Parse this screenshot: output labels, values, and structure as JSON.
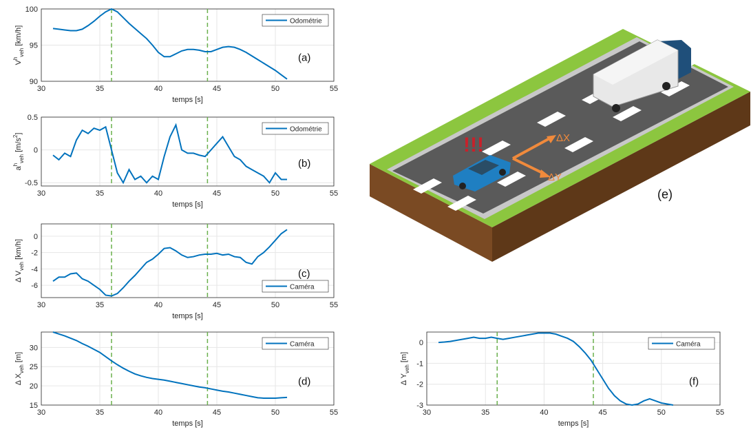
{
  "chart_data": [
    {
      "type": "line",
      "panel_label": "(a)",
      "xlabel": "temps [s]",
      "ylabel": [
        {
          "text": "V"
        },
        {
          "text": "h",
          "pos": "sup"
        },
        {
          "text": "veh",
          "pos": "sub"
        },
        {
          "text": " [km/h]"
        }
      ],
      "xlim": [
        30,
        55
      ],
      "xticks": [
        30,
        35,
        40,
        45,
        50,
        55
      ],
      "ylim": [
        90,
        100
      ],
      "yticks": [
        90,
        95,
        100
      ],
      "grid": true,
      "legend": "upper right",
      "vlines": [
        36,
        44.2
      ],
      "vline_color": "#6ab04c",
      "x": [
        31,
        31.5,
        32,
        32.5,
        33,
        33.5,
        34,
        34.5,
        35,
        35.5,
        36,
        36.5,
        37,
        37.5,
        38,
        38.5,
        39,
        39.5,
        40,
        40.5,
        41,
        41.5,
        42,
        42.5,
        43,
        43.5,
        44,
        44.5,
        45,
        45.5,
        46,
        46.5,
        47,
        47.5,
        48,
        48.5,
        49,
        49.5,
        50,
        50.5,
        51
      ],
      "series": [
        {
          "name": "Odométrie",
          "color": "#0072bd",
          "values": [
            97.3,
            97.2,
            97.1,
            97.0,
            97.0,
            97.2,
            97.7,
            98.3,
            99,
            99.6,
            100,
            99.6,
            98.8,
            98.0,
            97.3,
            96.6,
            95.9,
            95.0,
            94.0,
            93.4,
            93.4,
            93.8,
            94.2,
            94.4,
            94.4,
            94.3,
            94.1,
            94.1,
            94.4,
            94.7,
            94.8,
            94.7,
            94.4,
            94.0,
            93.5,
            93.0,
            92.5,
            92.0,
            91.5,
            90.9,
            90.3
          ]
        }
      ]
    },
    {
      "type": "line",
      "panel_label": "(b)",
      "xlabel": "temps [s]",
      "ylabel": [
        {
          "text": "a"
        },
        {
          "text": "h",
          "pos": "sup"
        },
        {
          "text": "veh",
          "pos": "sub"
        },
        {
          "text": " [m/s"
        },
        {
          "text": "2",
          "pos": "sup"
        },
        {
          "text": "]"
        }
      ],
      "xlim": [
        30,
        55
      ],
      "xticks": [
        30,
        35,
        40,
        45,
        50,
        55
      ],
      "ylim": [
        -0.55,
        0.5
      ],
      "yticks": [
        -0.5,
        0,
        0.5
      ],
      "grid": true,
      "legend": "upper right",
      "vlines": [
        36,
        44.2
      ],
      "vline_color": "#6ab04c",
      "x": [
        31,
        31.5,
        32,
        32.5,
        33,
        33.5,
        34,
        34.5,
        35,
        35.5,
        36,
        36.5,
        37,
        37.5,
        38,
        38.5,
        39,
        39.5,
        40,
        40.5,
        41,
        41.5,
        42,
        42.5,
        43,
        43.5,
        44,
        44.5,
        45,
        45.5,
        46,
        46.5,
        47,
        47.5,
        48,
        48.5,
        49,
        49.5,
        50,
        50.5,
        51
      ],
      "series": [
        {
          "name": "Odométrie",
          "color": "#0072bd",
          "values": [
            -0.08,
            -0.15,
            -0.05,
            -0.1,
            0.15,
            0.3,
            0.25,
            0.33,
            0.3,
            0.35,
            0.0,
            -0.35,
            -0.5,
            -0.3,
            -0.45,
            -0.4,
            -0.5,
            -0.4,
            -0.45,
            -0.1,
            0.2,
            0.38,
            0.0,
            -0.05,
            -0.05,
            -0.08,
            -0.1,
            0.0,
            0.1,
            0.2,
            0.05,
            -0.1,
            -0.15,
            -0.25,
            -0.3,
            -0.35,
            -0.4,
            -0.5,
            -0.35,
            -0.45,
            -0.45
          ]
        }
      ]
    },
    {
      "type": "line",
      "panel_label": "(c)",
      "xlabel": "temps [s]",
      "ylabel": [
        {
          "text": "Δ V"
        },
        {
          "text": "veh",
          "pos": "sub"
        },
        {
          "text": " [km/h]"
        }
      ],
      "xlim": [
        30,
        55
      ],
      "xticks": [
        30,
        35,
        40,
        45,
        50,
        55
      ],
      "ylim": [
        -7.5,
        1.5
      ],
      "yticks": [
        -6,
        -4,
        -2,
        0
      ],
      "grid": true,
      "legend": "lower right",
      "vlines": [
        36,
        44.2
      ],
      "vline_color": "#6ab04c",
      "x": [
        31,
        31.5,
        32,
        32.5,
        33,
        33.5,
        34,
        34.5,
        35,
        35.5,
        36,
        36.5,
        37,
        37.5,
        38,
        38.5,
        39,
        39.5,
        40,
        40.5,
        41,
        41.5,
        42,
        42.5,
        43,
        43.5,
        44,
        44.5,
        45,
        45.5,
        46,
        46.5,
        47,
        47.5,
        48,
        48.5,
        49,
        49.5,
        50,
        50.5,
        51
      ],
      "series": [
        {
          "name": "Caméra",
          "color": "#0072bd",
          "values": [
            -5.5,
            -5,
            -5,
            -4.6,
            -4.5,
            -5.2,
            -5.5,
            -6,
            -6.5,
            -7.2,
            -7.3,
            -7.0,
            -6.3,
            -5.5,
            -4.8,
            -4,
            -3.2,
            -2.8,
            -2.2,
            -1.5,
            -1.4,
            -1.8,
            -2.3,
            -2.6,
            -2.5,
            -2.3,
            -2.2,
            -2.2,
            -2.1,
            -2.3,
            -2.2,
            -2.5,
            -2.6,
            -3.2,
            -3.4,
            -2.5,
            -2.0,
            -1.3,
            -0.5,
            0.3,
            0.8
          ]
        }
      ]
    },
    {
      "type": "line",
      "panel_label": "(d)",
      "xlabel": "temps [s]",
      "ylabel": [
        {
          "text": "Δ X"
        },
        {
          "text": "veh",
          "pos": "sub"
        },
        {
          "text": " [m]"
        }
      ],
      "xlim": [
        30,
        55
      ],
      "xticks": [
        30,
        35,
        40,
        45,
        50,
        55
      ],
      "ylim": [
        15,
        34
      ],
      "yticks": [
        15,
        20,
        25,
        30
      ],
      "grid": true,
      "legend": "upper right",
      "vlines": [
        36,
        44.2
      ],
      "vline_color": "#6ab04c",
      "x": [
        31,
        31.5,
        32,
        32.5,
        33,
        33.5,
        34,
        34.5,
        35,
        35.5,
        36,
        36.5,
        37,
        37.5,
        38,
        38.5,
        39,
        39.5,
        40,
        40.5,
        41,
        41.5,
        42,
        42.5,
        43,
        43.5,
        44,
        44.5,
        45,
        45.5,
        46,
        46.5,
        47,
        47.5,
        48,
        48.5,
        49,
        49.5,
        50,
        50.5,
        51
      ],
      "series": [
        {
          "name": "Caméra",
          "color": "#0072bd",
          "values": [
            34,
            33.5,
            33,
            32.4,
            31.8,
            31,
            30.3,
            29.5,
            28.7,
            27.6,
            26.5,
            25.5,
            24.6,
            23.8,
            23.1,
            22.6,
            22.2,
            21.9,
            21.7,
            21.5,
            21.2,
            20.9,
            20.6,
            20.3,
            20.0,
            19.7,
            19.5,
            19.2,
            18.9,
            18.6,
            18.4,
            18.1,
            17.8,
            17.5,
            17.2,
            16.9,
            16.8,
            16.8,
            16.8,
            16.9,
            17.0
          ]
        }
      ]
    },
    {
      "type": "line",
      "panel_label": "(f)",
      "xlabel": "temps [s]",
      "ylabel": [
        {
          "text": "Δ Y"
        },
        {
          "text": "veh",
          "pos": "sub"
        },
        {
          "text": " [m]"
        }
      ],
      "xlim": [
        30,
        55
      ],
      "xticks": [
        30,
        35,
        40,
        45,
        50,
        55
      ],
      "ylim": [
        -3,
        0.5
      ],
      "yticks": [
        -3,
        -2,
        -1,
        0
      ],
      "grid": true,
      "legend": "upper right",
      "vlines": [
        36,
        44.2
      ],
      "vline_color": "#6ab04c",
      "x": [
        31,
        31.5,
        32,
        32.5,
        33,
        33.5,
        34,
        34.5,
        35,
        35.5,
        36,
        36.5,
        37,
        37.5,
        38,
        38.5,
        39,
        39.5,
        40,
        40.5,
        41,
        41.5,
        42,
        42.5,
        43,
        43.5,
        44,
        44.5,
        45,
        45.5,
        46,
        46.5,
        47,
        47.5,
        48,
        48.5,
        49,
        49.5,
        50,
        50.5,
        51
      ],
      "series": [
        {
          "name": "Caméra",
          "color": "#0072bd",
          "values": [
            0,
            0.02,
            0.05,
            0.1,
            0.15,
            0.2,
            0.25,
            0.2,
            0.2,
            0.25,
            0.2,
            0.15,
            0.2,
            0.25,
            0.3,
            0.35,
            0.4,
            0.45,
            0.45,
            0.45,
            0.4,
            0.3,
            0.2,
            0.05,
            -0.2,
            -0.5,
            -0.85,
            -1.3,
            -1.75,
            -2.2,
            -2.55,
            -2.8,
            -2.95,
            -3.0,
            -2.95,
            -2.8,
            -2.7,
            -2.8,
            -2.9,
            -2.95,
            -3.0
          ]
        }
      ]
    }
  ],
  "illustration": {
    "label": "(e)",
    "warning": "!!!",
    "arrow_x": "ΔX",
    "arrow_y": "ΔY"
  }
}
